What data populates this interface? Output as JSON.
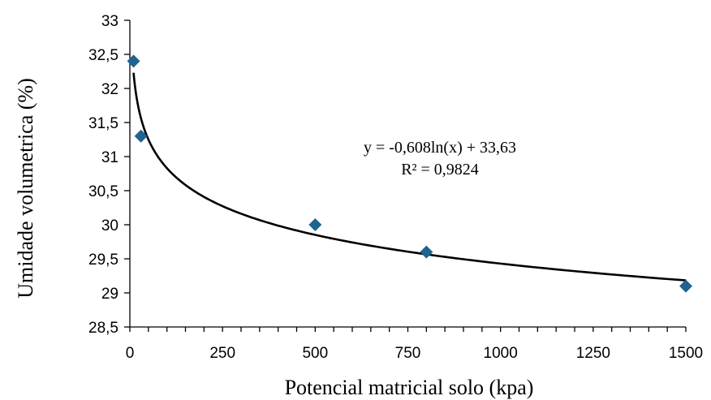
{
  "chart_data": {
    "type": "scatter",
    "xlabel": "Potencial matricial solo (kpa)",
    "ylabel": "Umidade volumetrica (%)",
    "xlim": [
      0,
      1500
    ],
    "ylim": [
      28.5,
      33
    ],
    "x_ticks": [
      0,
      250,
      500,
      750,
      1000,
      1250,
      1500
    ],
    "x_tick_labels": [
      "0",
      "250",
      "500",
      "750",
      "1000",
      "1250",
      "1500"
    ],
    "y_ticks": [
      28.5,
      29,
      29.5,
      30,
      30.5,
      31,
      31.5,
      32,
      32.5,
      33
    ],
    "y_tick_labels": [
      "28,5",
      "29",
      "29,5",
      "30",
      "30,5",
      "31",
      "31,5",
      "32",
      "32,5",
      "33"
    ],
    "grid": false,
    "legend": false,
    "series": [
      {
        "marker": "diamond",
        "color": "#1F6391",
        "x": [
          10,
          30,
          500,
          800,
          1500
        ],
        "y": [
          32.4,
          31.3,
          30.0,
          29.6,
          29.1
        ]
      }
    ],
    "trendline": {
      "type": "logarithmic",
      "a": -0.608,
      "b": 33.63,
      "x_range": [
        10,
        1500
      ],
      "color": "#000000",
      "equation": "y = -0,608ln(x) + 33,63",
      "r_squared": "R² = 0,9824"
    }
  }
}
